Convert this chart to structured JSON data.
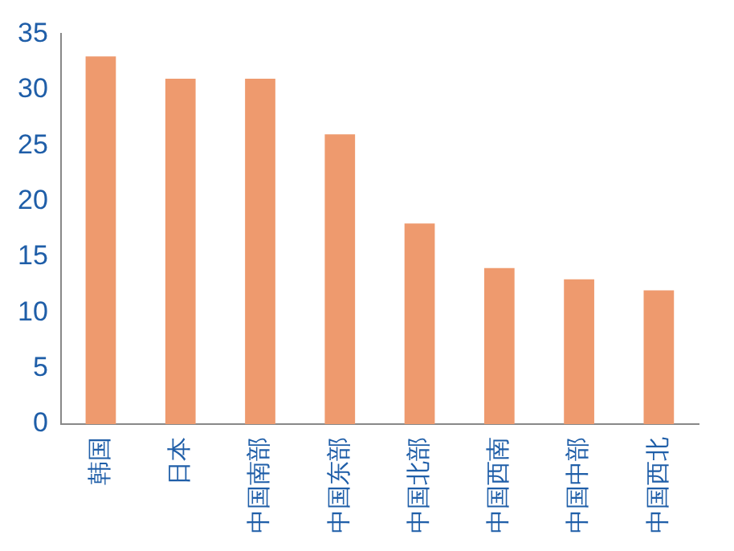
{
  "chart_data": {
    "type": "bar",
    "categories": [
      "韩国",
      "日本",
      "中国南部",
      "中国东部",
      "中国北部",
      "中国西南",
      "中国中部",
      "中国西北"
    ],
    "values": [
      33,
      31,
      31,
      26,
      18,
      14,
      13,
      12
    ],
    "color": "#ee9a6e",
    "ylim": [
      0,
      35
    ],
    "yticks": [
      0,
      5,
      10,
      15,
      20,
      25,
      30,
      35
    ],
    "grid": false,
    "legend": false
  }
}
